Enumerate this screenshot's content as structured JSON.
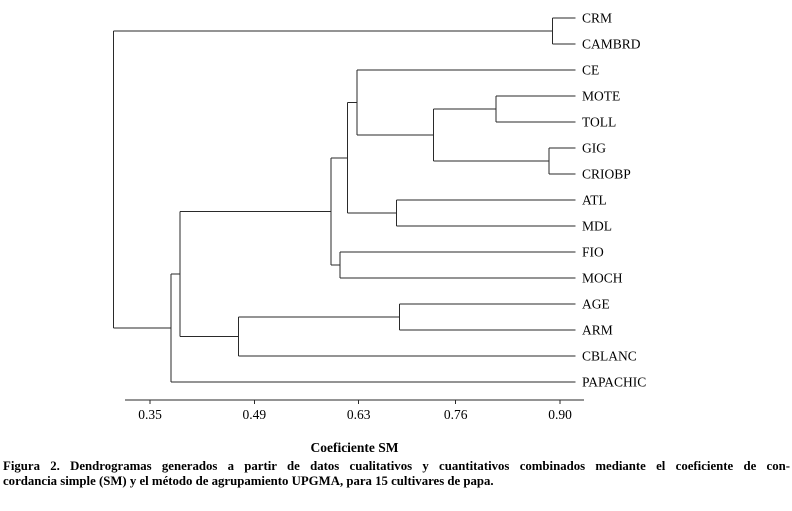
{
  "figure": {
    "caption_lines": [
      "Figura 2. Dendrogramas generados a partir de datos cualitativos y cuantitativos combinados mediante el coeficiente de con-",
      "cordancia simple (SM) y el método de agrupamiento UPGMA, para 15 cultivares de papa."
    ]
  },
  "colors": {
    "line": "#2a2a2a",
    "text": "#000000",
    "background": "#ffffff"
  },
  "chart_data": {
    "type": "dendrogram",
    "xlabel": "Coeficiente SM",
    "xticks": [
      0.35,
      0.49,
      0.63,
      0.76,
      0.9
    ],
    "xrange": [
      0.3,
      0.92
    ],
    "leaf_extent": 0.921,
    "grid": false,
    "leaves": [
      "CRM",
      "CAMBRD",
      "CE",
      "MOTE",
      "TOLL",
      "GIG",
      "CRIOBP",
      "ATL",
      "MDL",
      "FIO",
      "MOCH",
      "AGE",
      "ARM",
      "CBLANC",
      "PAPACHIC"
    ],
    "tree": {
      "h": 0.301,
      "children": [
        {
          "h": 0.89,
          "children": [
            {
              "leaf": "CRM"
            },
            {
              "leaf": "CAMBRD"
            }
          ]
        },
        {
          "h": 0.378,
          "children": [
            {
              "h": 0.39,
              "children": [
                {
                  "h": 0.593,
                  "children": [
                    {
                      "h": 0.615,
                      "children": [
                        {
                          "h": 0.628,
                          "children": [
                            {
                              "leaf": "CE"
                            },
                            {
                              "h": 0.73,
                              "children": [
                                {
                                  "h": 0.814,
                                  "children": [
                                    {
                                      "leaf": "MOTE"
                                    },
                                    {
                                      "leaf": "TOLL"
                                    }
                                  ]
                                },
                                {
                                  "h": 0.885,
                                  "children": [
                                    {
                                      "leaf": "GIG"
                                    },
                                    {
                                      "leaf": "CRIOBP"
                                    }
                                  ]
                                }
                              ]
                            }
                          ]
                        },
                        {
                          "h": 0.681,
                          "children": [
                            {
                              "leaf": "ATL"
                            },
                            {
                              "leaf": "MDL"
                            }
                          ]
                        }
                      ]
                    },
                    {
                      "h": 0.605,
                      "children": [
                        {
                          "leaf": "FIO"
                        },
                        {
                          "leaf": "MOCH"
                        }
                      ]
                    }
                  ]
                },
                {
                  "h": 0.469,
                  "children": [
                    {
                      "h": 0.685,
                      "children": [
                        {
                          "leaf": "AGE"
                        },
                        {
                          "leaf": "ARM"
                        }
                      ]
                    },
                    {
                      "leaf": "CBLANC"
                    }
                  ]
                }
              ]
            },
            {
              "leaf": "PAPACHIC"
            }
          ]
        }
      ]
    }
  }
}
